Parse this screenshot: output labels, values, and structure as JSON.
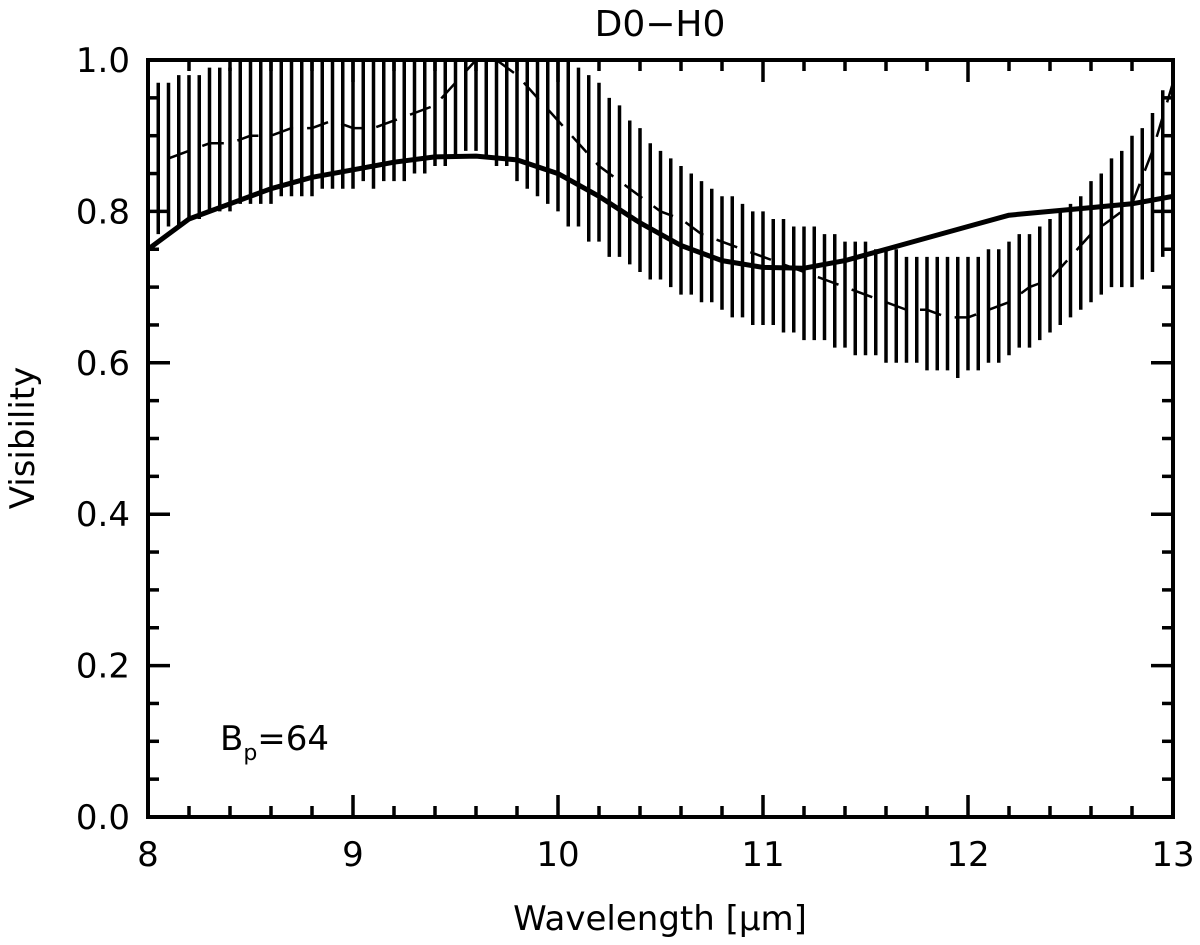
{
  "chart_data": {
    "type": "line",
    "title": "D0−H0",
    "xlabel": "Wavelength [μm]",
    "ylabel": "Visibility",
    "xlim": [
      8,
      13
    ],
    "ylim": [
      0.0,
      1.0
    ],
    "x_ticks": [
      8,
      9,
      10,
      11,
      12,
      13
    ],
    "x_tick_labels": [
      "8",
      "9",
      "10",
      "11",
      "12",
      "13"
    ],
    "y_ticks": [
      0.0,
      0.2,
      0.4,
      0.6,
      0.8,
      1.0
    ],
    "y_tick_labels": [
      "0.0",
      "0.2",
      "0.4",
      "0.6",
      "0.8",
      "1.0"
    ],
    "grid": false,
    "annotation": {
      "base": "B",
      "sub": "p",
      "rest": "=64"
    },
    "series": [
      {
        "style": "solid",
        "x": [
          8.0,
          8.1,
          8.2,
          8.3,
          8.4,
          8.6,
          8.8,
          9.0,
          9.2,
          9.4,
          9.6,
          9.8,
          10.0,
          10.2,
          10.4,
          10.6,
          10.8,
          11.0,
          11.2,
          11.4,
          11.6,
          11.8,
          12.0,
          12.2,
          12.4,
          12.6,
          12.8,
          13.0
        ],
        "y": [
          0.75,
          0.77,
          0.79,
          0.8,
          0.81,
          0.83,
          0.845,
          0.855,
          0.865,
          0.872,
          0.873,
          0.868,
          0.85,
          0.82,
          0.785,
          0.755,
          0.735,
          0.726,
          0.725,
          0.735,
          0.75,
          0.765,
          0.78,
          0.795,
          0.8,
          0.805,
          0.81,
          0.82
        ]
      },
      {
        "style": "dashed",
        "x": [
          8.1,
          8.2,
          8.3,
          8.4,
          8.5,
          8.6,
          8.7,
          8.8,
          8.9,
          9.0,
          9.1,
          9.2,
          9.3,
          9.4,
          9.5,
          9.6,
          9.7,
          9.8,
          9.9,
          10.0,
          10.1,
          10.2,
          10.3,
          10.4,
          10.5,
          10.6,
          10.7,
          10.8,
          10.9,
          11.0,
          11.1,
          11.2,
          11.3,
          11.4,
          11.5,
          11.6,
          11.7,
          11.8,
          11.9,
          12.0,
          12.1,
          12.2,
          12.3,
          12.4,
          12.5,
          12.6,
          12.7,
          12.8,
          12.9,
          13.0
        ],
        "y": [
          0.87,
          0.88,
          0.89,
          0.89,
          0.9,
          0.9,
          0.91,
          0.91,
          0.92,
          0.91,
          0.91,
          0.92,
          0.93,
          0.94,
          0.97,
          1.0,
          1.0,
          0.98,
          0.95,
          0.92,
          0.89,
          0.86,
          0.84,
          0.82,
          0.8,
          0.79,
          0.77,
          0.76,
          0.75,
          0.74,
          0.73,
          0.72,
          0.71,
          0.7,
          0.69,
          0.68,
          0.67,
          0.67,
          0.66,
          0.66,
          0.67,
          0.68,
          0.7,
          0.71,
          0.74,
          0.77,
          0.79,
          0.81,
          0.88,
          0.97
        ]
      }
    ],
    "error_bars": {
      "x": [
        8.05,
        8.1,
        8.15,
        8.2,
        8.25,
        8.3,
        8.35,
        8.4,
        8.45,
        8.5,
        8.55,
        8.6,
        8.65,
        8.7,
        8.75,
        8.8,
        8.85,
        8.9,
        8.95,
        9.0,
        9.05,
        9.1,
        9.15,
        9.2,
        9.25,
        9.3,
        9.35,
        9.4,
        9.45,
        9.5,
        9.55,
        9.6,
        9.65,
        9.7,
        9.75,
        9.8,
        9.85,
        9.9,
        9.95,
        10.0,
        10.05,
        10.1,
        10.15,
        10.2,
        10.25,
        10.3,
        10.35,
        10.4,
        10.45,
        10.5,
        10.55,
        10.6,
        10.65,
        10.7,
        10.75,
        10.8,
        10.85,
        10.9,
        10.95,
        11.0,
        11.05,
        11.1,
        11.15,
        11.2,
        11.25,
        11.3,
        11.35,
        11.4,
        11.45,
        11.5,
        11.55,
        11.6,
        11.65,
        11.7,
        11.75,
        11.8,
        11.85,
        11.9,
        11.95,
        12.0,
        12.05,
        12.1,
        12.15,
        12.2,
        12.25,
        12.3,
        12.35,
        12.4,
        12.45,
        12.5,
        12.55,
        12.6,
        12.65,
        12.7,
        12.75,
        12.8,
        12.85,
        12.9,
        12.95,
        13.0
      ],
      "low": [
        0.77,
        0.78,
        0.78,
        0.79,
        0.79,
        0.8,
        0.8,
        0.8,
        0.81,
        0.81,
        0.81,
        0.81,
        0.82,
        0.82,
        0.82,
        0.82,
        0.83,
        0.83,
        0.83,
        0.83,
        0.84,
        0.83,
        0.84,
        0.84,
        0.84,
        0.85,
        0.85,
        0.86,
        0.86,
        0.87,
        0.88,
        0.88,
        0.87,
        0.86,
        0.86,
        0.84,
        0.83,
        0.82,
        0.81,
        0.8,
        0.78,
        0.78,
        0.76,
        0.76,
        0.74,
        0.74,
        0.73,
        0.72,
        0.71,
        0.71,
        0.7,
        0.69,
        0.69,
        0.68,
        0.68,
        0.67,
        0.66,
        0.66,
        0.65,
        0.65,
        0.65,
        0.64,
        0.64,
        0.63,
        0.63,
        0.63,
        0.62,
        0.62,
        0.61,
        0.61,
        0.61,
        0.6,
        0.6,
        0.6,
        0.6,
        0.59,
        0.59,
        0.59,
        0.58,
        0.59,
        0.59,
        0.6,
        0.6,
        0.61,
        0.62,
        0.62,
        0.63,
        0.64,
        0.65,
        0.66,
        0.67,
        0.68,
        0.69,
        0.7,
        0.7,
        0.7,
        0.71,
        0.72,
        0.74,
        0.76
      ],
      "high": [
        0.97,
        0.97,
        0.98,
        0.98,
        0.98,
        0.99,
        0.99,
        0.99,
        1.0,
        1.0,
        1.0,
        1.0,
        1.0,
        1.0,
        1.0,
        1.0,
        1.0,
        1.0,
        1.0,
        1.0,
        1.0,
        1.0,
        1.0,
        1.0,
        1.0,
        1.0,
        1.0,
        1.0,
        1.0,
        1.0,
        1.0,
        1.0,
        1.0,
        1.0,
        1.0,
        1.0,
        1.0,
        1.0,
        1.0,
        1.0,
        1.0,
        0.99,
        0.98,
        0.97,
        0.95,
        0.94,
        0.92,
        0.91,
        0.89,
        0.88,
        0.87,
        0.86,
        0.85,
        0.84,
        0.83,
        0.82,
        0.82,
        0.81,
        0.8,
        0.8,
        0.79,
        0.79,
        0.78,
        0.78,
        0.78,
        0.77,
        0.77,
        0.76,
        0.76,
        0.76,
        0.75,
        0.75,
        0.75,
        0.74,
        0.74,
        0.74,
        0.74,
        0.74,
        0.74,
        0.74,
        0.74,
        0.75,
        0.75,
        0.76,
        0.77,
        0.77,
        0.78,
        0.79,
        0.8,
        0.81,
        0.82,
        0.84,
        0.85,
        0.87,
        0.88,
        0.9,
        0.91,
        0.93,
        0.96,
        0.98
      ]
    }
  }
}
